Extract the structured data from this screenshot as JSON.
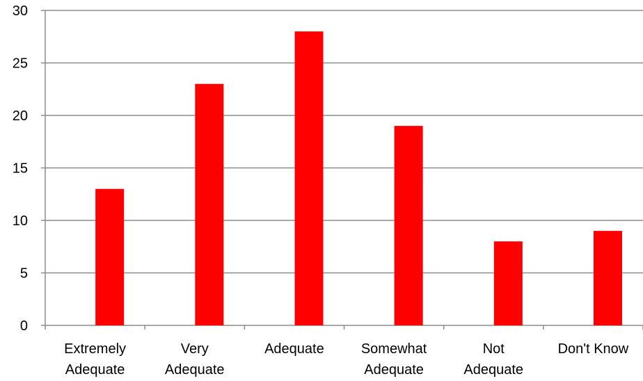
{
  "chart_data": {
    "type": "bar",
    "categories": [
      [
        "Extremely",
        "Adequate"
      ],
      [
        "Very",
        "Adequate"
      ],
      [
        "Adequate"
      ],
      [
        "Somewhat",
        "Adequate"
      ],
      [
        "Not",
        "Adequate"
      ],
      [
        "Don't Know"
      ]
    ],
    "values": [
      13,
      23,
      28,
      19,
      8,
      9
    ],
    "ylim": [
      0,
      30
    ],
    "y_ticks": [
      "0",
      "5",
      "10",
      "15",
      "20",
      "25",
      "30"
    ],
    "grid": true,
    "legend": "none",
    "title": "",
    "xlabel": "",
    "ylabel": "",
    "colors": {
      "bar": "#FF0000",
      "grid": "#8C8C8C",
      "axis": "#8C8C8C",
      "text": "#000000"
    }
  }
}
